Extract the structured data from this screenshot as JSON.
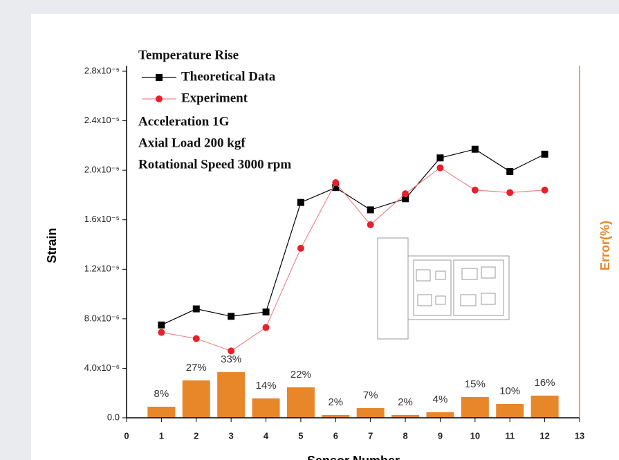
{
  "chart_data": {
    "type": "line",
    "legend_title": "Temperature Rise",
    "annotations": [
      "Acceleration 1G",
      "Axial Load 200 kgf",
      "Rotational Speed 3000 rpm"
    ],
    "x_label": "Sensor Number",
    "y_label": "Strain",
    "y2_label": "Error(%)",
    "x": [
      1,
      2,
      3,
      4,
      5,
      6,
      7,
      8,
      9,
      10,
      11,
      12
    ],
    "xlim": [
      0,
      13
    ],
    "xticks": [
      0,
      1,
      2,
      3,
      4,
      5,
      6,
      7,
      8,
      9,
      10,
      11,
      12,
      13
    ],
    "ylim": [
      0,
      2.8e-05
    ],
    "yticks": [
      {
        "value": 0,
        "label": "0.0"
      },
      {
        "value": 4e-06,
        "label": "4.0x10⁻⁶"
      },
      {
        "value": 8e-06,
        "label": "8.0x10⁻⁶"
      },
      {
        "value": 1.2e-05,
        "label": "1.2x10⁻⁵"
      },
      {
        "value": 1.6e-05,
        "label": "1.6x10⁻⁵"
      },
      {
        "value": 2e-05,
        "label": "2.0x10⁻⁵"
      },
      {
        "value": 2.4e-05,
        "label": "2.4x10⁻⁵"
      },
      {
        "value": 2.8e-05,
        "label": "2.8x10⁻⁵"
      }
    ],
    "y2lim": [
      0,
      250
    ],
    "series": [
      {
        "name": "Theoretical Data",
        "type": "line",
        "marker": "square",
        "color": "#000000",
        "values": [
          7.5e-06,
          8.8e-06,
          8.2e-06,
          8.55e-06,
          1.74e-05,
          1.86e-05,
          1.68e-05,
          1.77e-05,
          2.1e-05,
          2.17e-05,
          1.99e-05,
          2.13e-05
        ]
      },
      {
        "name": "Experiment",
        "type": "line",
        "marker": "circle",
        "color": "#e8202a",
        "line_color": "#f08888",
        "values": [
          6.9e-06,
          6.4e-06,
          5.4e-06,
          7.3e-06,
          1.37e-05,
          1.9e-05,
          1.56e-05,
          1.81e-05,
          2.02e-05,
          1.84e-05,
          1.82e-05,
          1.84e-05
        ]
      },
      {
        "type": "bar",
        "axis": "y2",
        "color": "#e8862a",
        "values": [
          8,
          27,
          33,
          14,
          22,
          2,
          7,
          2,
          4,
          15,
          10,
          16
        ],
        "value_labels": [
          "8%",
          "27%",
          "33%",
          "14%",
          "22%",
          "2%",
          "7%",
          "2%",
          "4%",
          "15%",
          "10%",
          "16%"
        ]
      }
    ]
  }
}
